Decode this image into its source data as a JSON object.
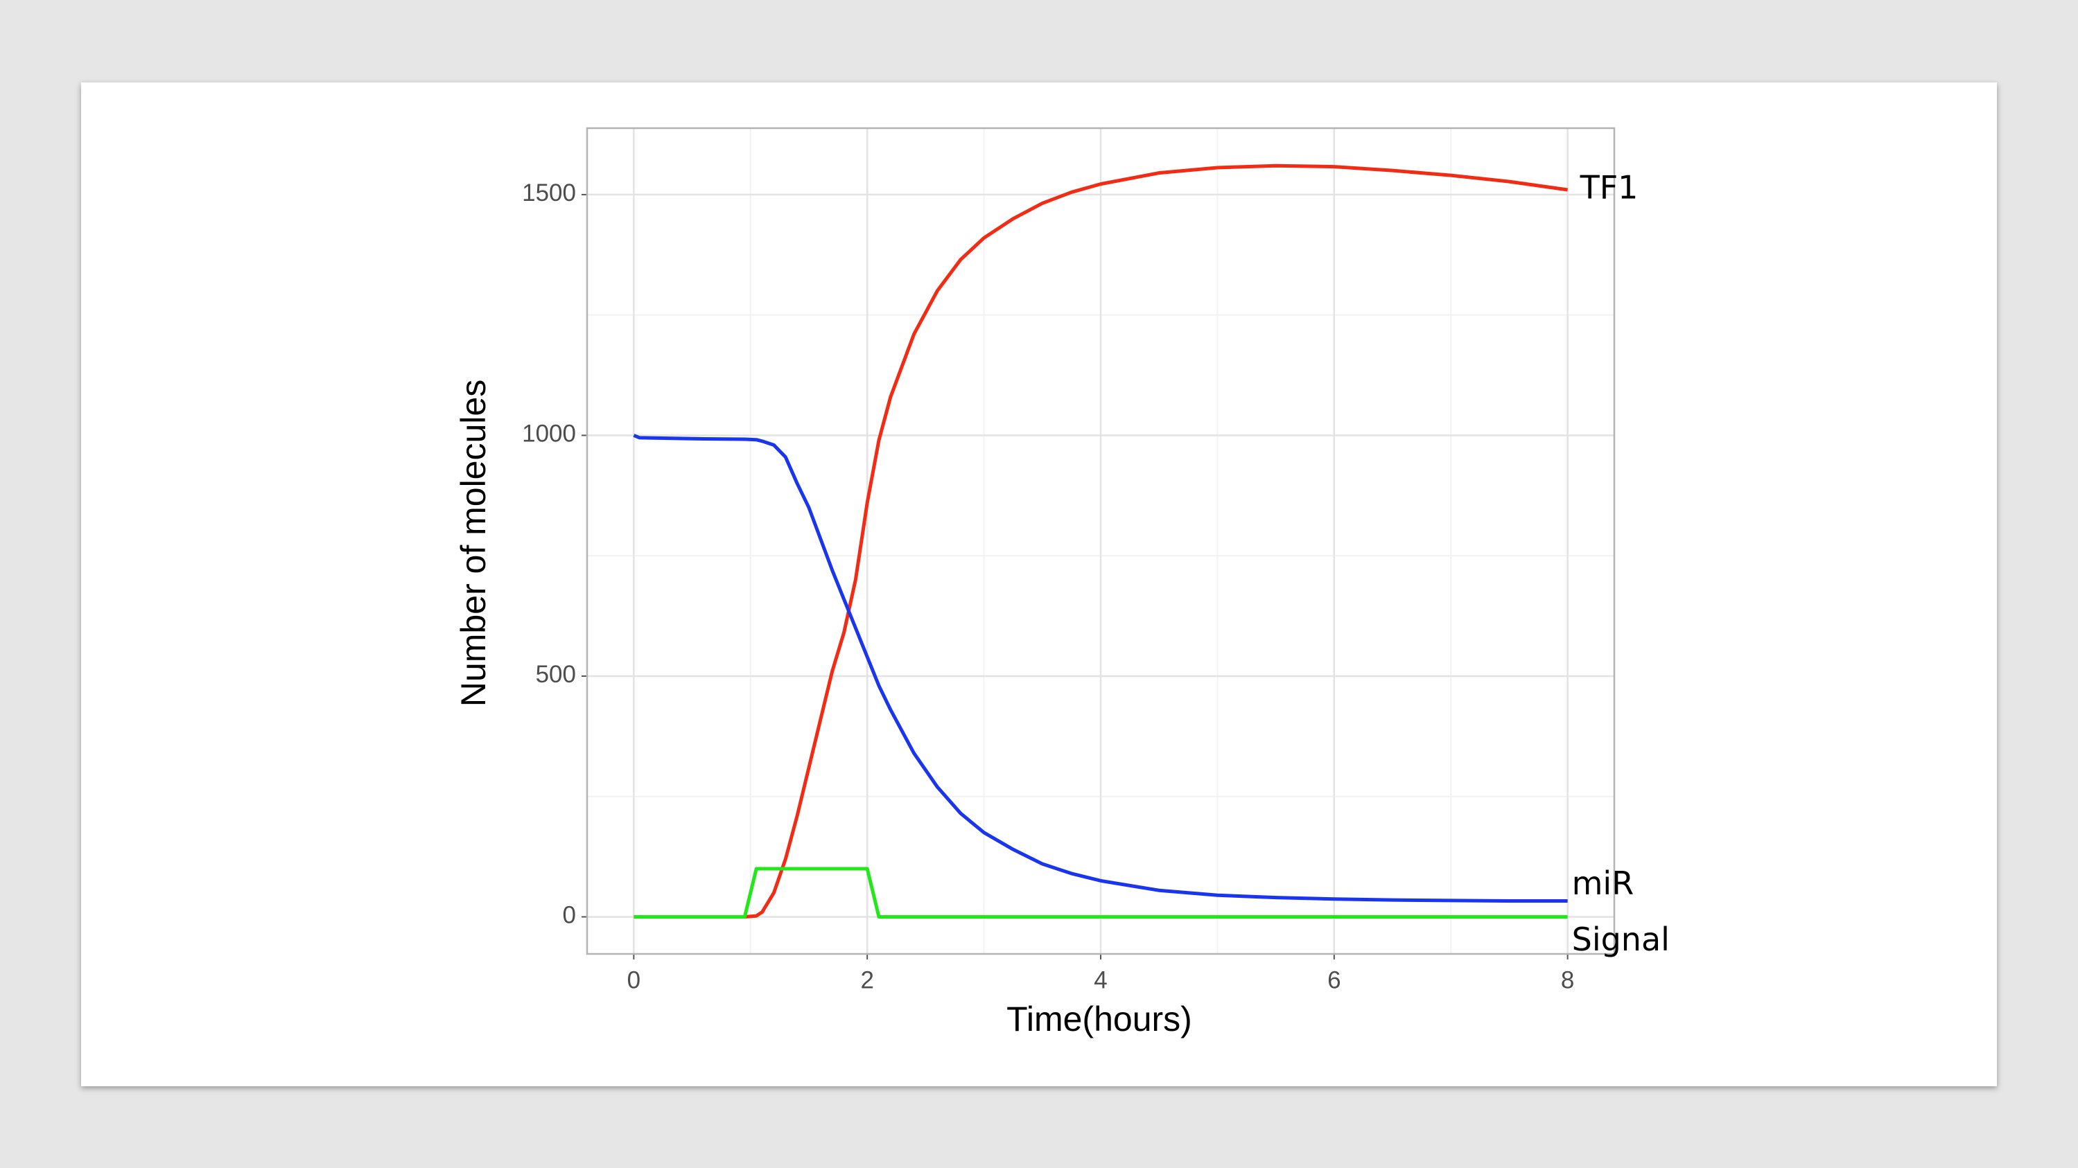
{
  "chart_data": {
    "type": "line",
    "x_label": "Time(hours)",
    "y_label": "Number of molecules",
    "x": [
      0,
      0.05,
      0.5,
      0.95,
      1.05,
      1.1,
      1.2,
      1.3,
      1.4,
      1.5,
      1.6,
      1.7,
      1.8,
      1.9,
      2.0,
      2.1,
      2.2,
      2.4,
      2.6,
      2.8,
      3.0,
      3.25,
      3.5,
      3.75,
      4,
      4.5,
      5,
      5.5,
      6,
      6.5,
      7,
      7.5,
      8
    ],
    "series": [
      {
        "name": "TF1",
        "color": "#f22b14",
        "values": [
          0,
          0,
          0,
          0,
          2,
          10,
          50,
          120,
          210,
          310,
          410,
          510,
          590,
          700,
          860,
          990,
          1080,
          1210,
          1300,
          1365,
          1410,
          1450,
          1482,
          1505,
          1522,
          1545,
          1556,
          1560,
          1558,
          1550,
          1540,
          1527,
          1510
        ]
      },
      {
        "name": "miR",
        "color": "#1a35f0",
        "values": [
          1000,
          995,
          993,
          992,
          991,
          988,
          980,
          955,
          900,
          850,
          785,
          720,
          660,
          600,
          540,
          480,
          430,
          340,
          270,
          215,
          175,
          140,
          110,
          90,
          75,
          55,
          45,
          40,
          37,
          35,
          34,
          33,
          33
        ]
      },
      {
        "name": "Signal",
        "color": "#22e81a",
        "values": [
          0,
          0,
          0,
          0,
          100,
          100,
          100,
          100,
          100,
          100,
          100,
          100,
          100,
          100,
          100,
          0,
          0,
          0,
          0,
          0,
          0,
          0,
          0,
          0,
          0,
          0,
          0,
          0,
          0,
          0,
          0,
          0,
          0
        ]
      }
    ],
    "xlim": [
      -0.4,
      8.4
    ],
    "ylim": [
      -77,
      1638
    ],
    "xticks": [
      0,
      2,
      4,
      6,
      8
    ],
    "yticks": [
      0,
      500,
      1000,
      1500
    ],
    "grid": true
  }
}
